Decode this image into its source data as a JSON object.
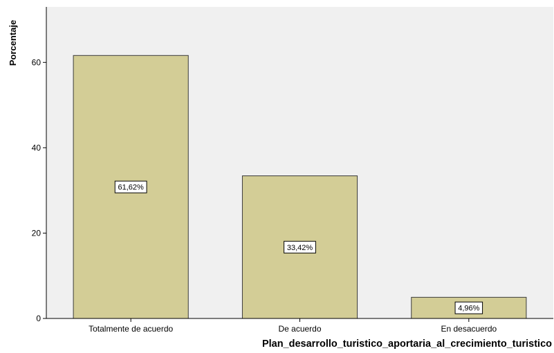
{
  "chart_data": {
    "type": "bar",
    "categories": [
      "Totalmente de acuerdo",
      "De acuerdo",
      "En desacuerdo"
    ],
    "values": [
      61.62,
      33.42,
      4.96
    ],
    "data_labels": [
      "61,62%",
      "33,42%",
      "4,96%"
    ],
    "xlabel": "Plan_desarrollo_turistico_aportaria_al_crecimiento_turistico",
    "ylabel": "Porcentaje",
    "ylim": [
      0,
      73
    ],
    "yticks": [
      0,
      20,
      40,
      60
    ],
    "ytick_labels": [
      "0",
      "20",
      "40",
      "60"
    ],
    "grid": false,
    "legend": "none",
    "colors": {
      "bar_fill": "#D3CD96",
      "bar_stroke": "#3A3A3A",
      "plot_background": "#F0F0F0"
    }
  }
}
